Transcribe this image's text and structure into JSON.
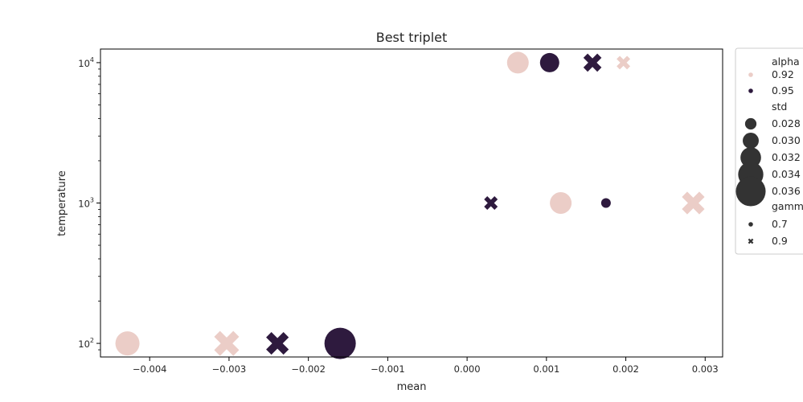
{
  "chart_data": {
    "type": "scatter",
    "title": "Best triplet",
    "xlabel": "mean",
    "ylabel": "temperature",
    "xlim": [
      -0.00462,
      0.00322
    ],
    "ylim": [
      80,
      12500
    ],
    "yscale": "log",
    "x_ticks": [
      -0.004,
      -0.003,
      -0.002,
      -0.001,
      0.0,
      0.001,
      0.002,
      0.003
    ],
    "x_tick_labels": [
      "−0.004",
      "−0.003",
      "−0.002",
      "−0.001",
      "0.000",
      "0.001",
      "0.002",
      "0.003"
    ],
    "y_ticks": [
      100,
      1000,
      10000
    ],
    "y_tick_labels": [
      {
        "base": "10",
        "exp": "2"
      },
      {
        "base": "10",
        "exp": "3"
      },
      {
        "base": "10",
        "exp": "4"
      }
    ],
    "grid": false,
    "legend_position": "outside-right",
    "hue_title": "alpha",
    "size_title": "std",
    "style_title": "gamma",
    "hue_levels": [
      {
        "label": "0.92",
        "color": "#ebcdc7"
      },
      {
        "label": "0.95",
        "color": "#2e1a3e"
      }
    ],
    "size_levels": [
      {
        "label": "0.028",
        "value": 0.028
      },
      {
        "label": "0.030",
        "value": 0.03
      },
      {
        "label": "0.032",
        "value": 0.032
      },
      {
        "label": "0.034",
        "value": 0.034
      },
      {
        "label": "0.036",
        "value": 0.036
      }
    ],
    "style_levels": [
      {
        "label": "0.7",
        "marker": "circle"
      },
      {
        "label": "0.9",
        "marker": "x"
      }
    ],
    "points": [
      {
        "mean": -0.00428,
        "temperature": 100,
        "alpha": 0.92,
        "std": 0.033,
        "gamma": 0.7
      },
      {
        "mean": -0.00303,
        "temperature": 100,
        "alpha": 0.92,
        "std": 0.034,
        "gamma": 0.9
      },
      {
        "mean": -0.00239,
        "temperature": 100,
        "alpha": 0.95,
        "std": 0.033,
        "gamma": 0.9
      },
      {
        "mean": -0.0016,
        "temperature": 100,
        "alpha": 0.95,
        "std": 0.036,
        "gamma": 0.7
      },
      {
        "mean": 0.0003,
        "temperature": 1000,
        "alpha": 0.95,
        "std": 0.029,
        "gamma": 0.9
      },
      {
        "mean": 0.00118,
        "temperature": 1000,
        "alpha": 0.92,
        "std": 0.032,
        "gamma": 0.7
      },
      {
        "mean": 0.00175,
        "temperature": 1000,
        "alpha": 0.95,
        "std": 0.027,
        "gamma": 0.7
      },
      {
        "mean": 0.00285,
        "temperature": 1000,
        "alpha": 0.92,
        "std": 0.033,
        "gamma": 0.9
      },
      {
        "mean": 0.00064,
        "temperature": 10000,
        "alpha": 0.92,
        "std": 0.032,
        "gamma": 0.7
      },
      {
        "mean": 0.00104,
        "temperature": 10000,
        "alpha": 0.95,
        "std": 0.031,
        "gamma": 0.7
      },
      {
        "mean": 0.00158,
        "temperature": 10000,
        "alpha": 0.95,
        "std": 0.031,
        "gamma": 0.9
      },
      {
        "mean": 0.00197,
        "temperature": 10000,
        "alpha": 0.92,
        "std": 0.029,
        "gamma": 0.9
      }
    ]
  }
}
